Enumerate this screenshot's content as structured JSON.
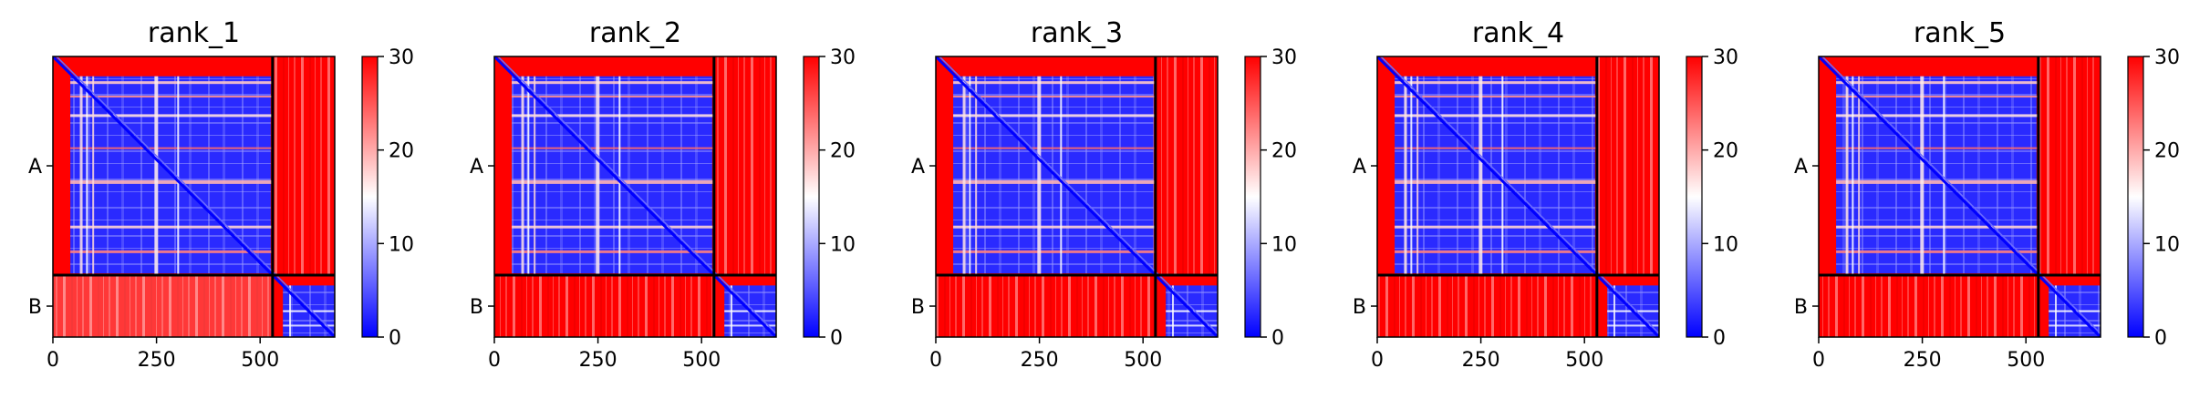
{
  "chart_data": [
    {
      "type": "heatmap",
      "title": "rank_1",
      "xticks": [
        0,
        250,
        500
      ],
      "yticks": [
        "A",
        "B"
      ],
      "xlim": [
        0,
        680
      ],
      "chain_break": 530,
      "colorbar": {
        "ticks": [
          0,
          10,
          20,
          30
        ],
        "range": [
          0,
          30
        ]
      }
    },
    {
      "type": "heatmap",
      "title": "rank_2",
      "xticks": [
        0,
        250,
        500
      ],
      "yticks": [
        "A",
        "B"
      ],
      "xlim": [
        0,
        680
      ],
      "chain_break": 530,
      "colorbar": {
        "ticks": [
          0,
          10,
          20,
          30
        ],
        "range": [
          0,
          30
        ]
      }
    },
    {
      "type": "heatmap",
      "title": "rank_3",
      "xticks": [
        0,
        250,
        500
      ],
      "yticks": [
        "A",
        "B"
      ],
      "xlim": [
        0,
        680
      ],
      "chain_break": 530,
      "colorbar": {
        "ticks": [
          0,
          10,
          20,
          30
        ],
        "range": [
          0,
          30
        ]
      }
    },
    {
      "type": "heatmap",
      "title": "rank_4",
      "xticks": [
        0,
        250,
        500
      ],
      "yticks": [
        "A",
        "B"
      ],
      "xlim": [
        0,
        680
      ],
      "chain_break": 530,
      "colorbar": {
        "ticks": [
          0,
          10,
          20,
          30
        ],
        "range": [
          0,
          30
        ]
      }
    },
    {
      "type": "heatmap",
      "title": "rank_5",
      "xticks": [
        0,
        250,
        500
      ],
      "yticks": [
        "A",
        "B"
      ],
      "xlim": [
        0,
        680
      ],
      "chain_break": 530,
      "colorbar": {
        "ticks": [
          0,
          10,
          20,
          30
        ],
        "range": [
          0,
          30
        ]
      }
    }
  ],
  "colors": {
    "low": "#0000ff",
    "mid": "#ffffff",
    "high": "#ff0000"
  }
}
